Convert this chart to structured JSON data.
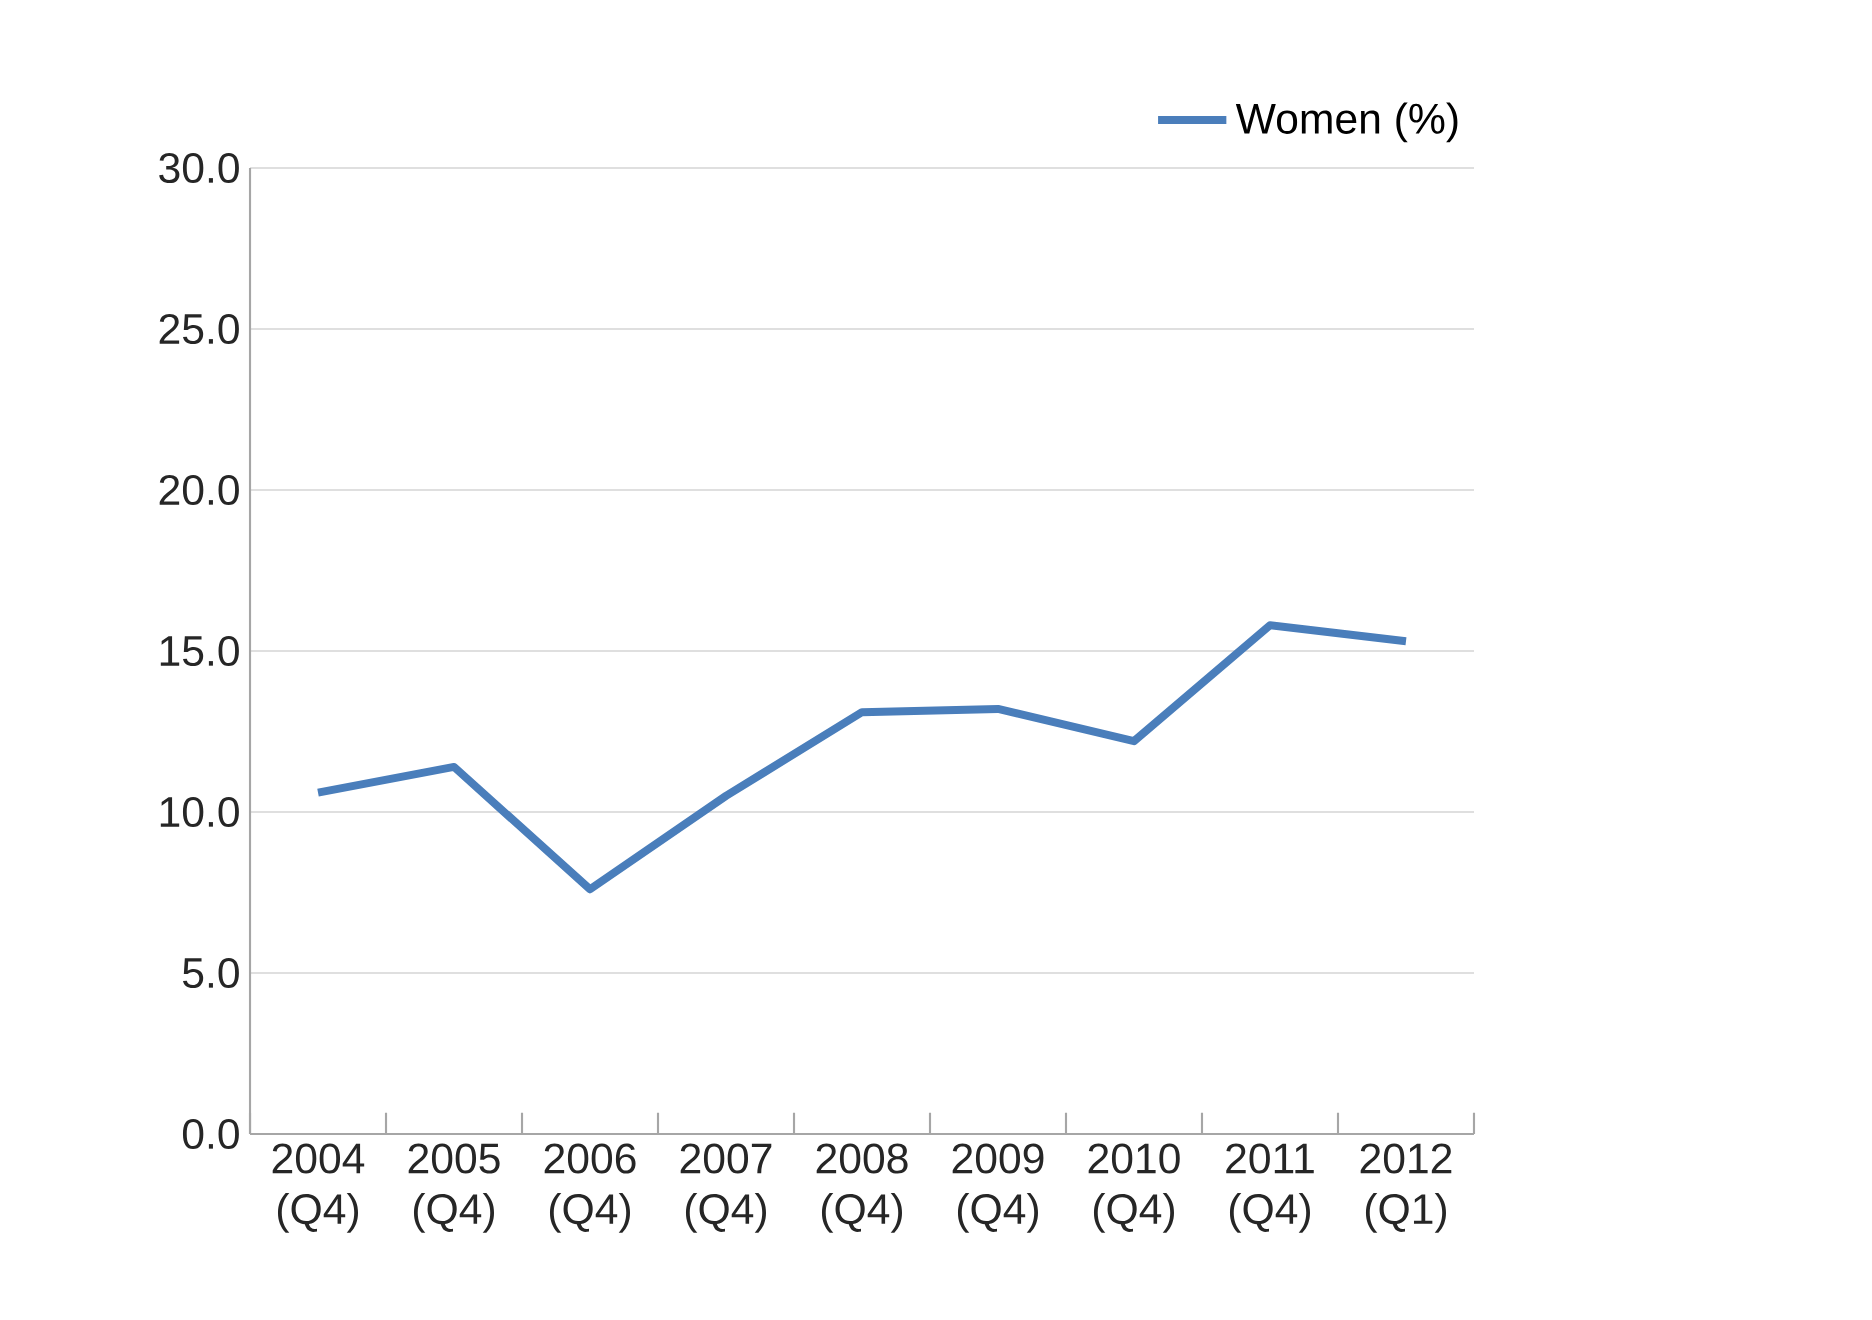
{
  "chart_data": {
    "type": "line",
    "categories": [
      "2004 (Q4)",
      "2005 (Q4)",
      "2006 (Q4)",
      "2007 (Q4)",
      "2008 (Q4)",
      "2009 (Q4)",
      "2010 (Q4)",
      "2011 (Q4)",
      "2012 (Q1)"
    ],
    "series": [
      {
        "name": "Women (%)",
        "color": "#4a7ebb",
        "values": [
          10.6,
          11.4,
          7.6,
          10.5,
          13.1,
          13.2,
          12.2,
          15.8,
          15.3
        ]
      }
    ],
    "ylim": [
      0,
      30
    ],
    "yticks": [
      {
        "value": 0,
        "label": "0.0"
      },
      {
        "value": 5,
        "label": "5.0"
      },
      {
        "value": 10,
        "label": "10.0"
      },
      {
        "value": 15,
        "label": "15.0"
      },
      {
        "value": 20,
        "label": "20.0"
      },
      {
        "value": 25,
        "label": "25.0"
      },
      {
        "value": 30,
        "label": "30.0"
      }
    ],
    "grid": "y",
    "legend": "top right",
    "marker": "none",
    "line_style": "solid"
  }
}
